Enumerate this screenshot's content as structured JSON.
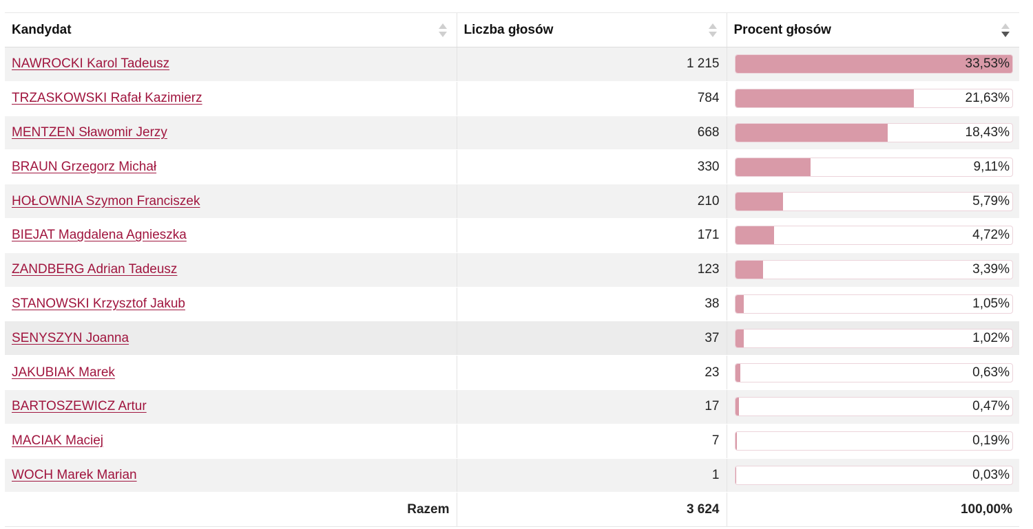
{
  "table": {
    "headers": {
      "candidate": "Kandydat",
      "votes": "Liczba głosów",
      "percent": "Procent głosów"
    },
    "rows": [
      {
        "name": "NAWROCKI Karol Tadeusz",
        "votes": "1 215",
        "percent": "33,53%",
        "share": 0.3353
      },
      {
        "name": "TRZASKOWSKI Rafał Kazimierz",
        "votes": "784",
        "percent": "21,63%",
        "share": 0.2163
      },
      {
        "name": "MENTZEN Sławomir Jerzy",
        "votes": "668",
        "percent": "18,43%",
        "share": 0.1843
      },
      {
        "name": "BRAUN Grzegorz Michał",
        "votes": "330",
        "percent": "9,11%",
        "share": 0.0911
      },
      {
        "name": "HOŁOWNIA Szymon Franciszek",
        "votes": "210",
        "percent": "5,79%",
        "share": 0.0579
      },
      {
        "name": "BIEJAT Magdalena Agnieszka",
        "votes": "171",
        "percent": "4,72%",
        "share": 0.0472
      },
      {
        "name": "ZANDBERG Adrian Tadeusz",
        "votes": "123",
        "percent": "3,39%",
        "share": 0.0339
      },
      {
        "name": "STANOWSKI Krzysztof Jakub",
        "votes": "38",
        "percent": "1,05%",
        "share": 0.0105
      },
      {
        "name": "SENYSZYN Joanna",
        "votes": "37",
        "percent": "1,02%",
        "share": 0.0102
      },
      {
        "name": "JAKUBIAK Marek",
        "votes": "23",
        "percent": "0,63%",
        "share": 0.0063
      },
      {
        "name": "BARTOSZEWICZ Artur",
        "votes": "17",
        "percent": "0,47%",
        "share": 0.0047
      },
      {
        "name": "MACIAK Maciej",
        "votes": "7",
        "percent": "0,19%",
        "share": 0.0019
      },
      {
        "name": "WOCH Marek Marian",
        "votes": "1",
        "percent": "0,03%",
        "share": 0.0003
      }
    ],
    "footer": {
      "label": "Razem",
      "votes": "3 624",
      "percent": "100,00%"
    },
    "sort": {
      "column": "percent",
      "direction": "descending"
    }
  },
  "colors": {
    "link": "#a0153e",
    "bar_fill": "#d99aa8",
    "stripe": "#f2f2f2"
  }
}
